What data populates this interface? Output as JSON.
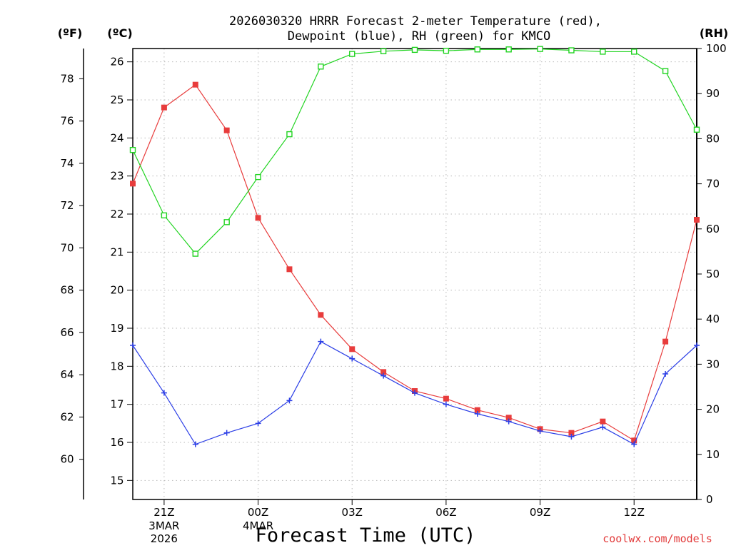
{
  "chart_data": {
    "type": "line",
    "title_line1": "2026030320 HRRR Forecast 2-meter Temperature (red),",
    "title_line2": "Dewpoint (blue), RH (green) for KMCO",
    "xlabel": "Forecast Time (UTC)",
    "credit": "coolwx.com/models",
    "units": {
      "fahrenheit": "(ºF)",
      "celsius": "(ºC)",
      "rh": "(RH)"
    },
    "x": [
      20,
      21,
      22,
      23,
      0,
      1,
      2,
      3,
      4,
      5,
      6,
      7,
      8,
      9,
      10,
      11,
      12,
      13,
      14
    ],
    "x_ticks": [
      {
        "index": 1,
        "label": "21Z",
        "date1": "3MAR",
        "date2": "2026"
      },
      {
        "index": 4,
        "label": "00Z",
        "date1": "4MAR",
        "date2": ""
      },
      {
        "index": 7,
        "label": "03Z",
        "date1": "",
        "date2": ""
      },
      {
        "index": 10,
        "label": "06Z",
        "date1": "",
        "date2": ""
      },
      {
        "index": 13,
        "label": "09Z",
        "date1": "",
        "date2": ""
      },
      {
        "index": 16,
        "label": "12Z",
        "date1": "",
        "date2": ""
      }
    ],
    "celsius_range": [
      14.5,
      26.35
    ],
    "celsius_ticks": [
      "15",
      "16",
      "17",
      "18",
      "19",
      "20",
      "21",
      "22",
      "23",
      "24",
      "25",
      "26"
    ],
    "fahrenheit_ticks": [
      "60",
      "62",
      "64",
      "66",
      "68",
      "70",
      "72",
      "74",
      "76",
      "78"
    ],
    "rh_range": [
      0,
      100
    ],
    "rh_ticks": [
      "0",
      "10",
      "20",
      "30",
      "40",
      "50",
      "60",
      "70",
      "80",
      "90",
      "100"
    ],
    "series": [
      {
        "name": "2-meter Temperature",
        "axis": "celsius",
        "color": "#e83c3c",
        "marker": "filled-square",
        "values": [
          22.8,
          24.8,
          25.4,
          24.2,
          21.9,
          20.55,
          19.35,
          18.45,
          17.85,
          17.35,
          17.15,
          16.85,
          16.65,
          16.35,
          16.25,
          16.55,
          16.05,
          18.65,
          21.85
        ]
      },
      {
        "name": "Dewpoint",
        "axis": "celsius",
        "color": "#2b3ee6",
        "marker": "plus",
        "values": [
          18.55,
          17.3,
          15.95,
          16.25,
          16.5,
          17.1,
          18.65,
          18.2,
          17.75,
          17.3,
          17.0,
          16.75,
          16.55,
          16.3,
          16.15,
          16.4,
          15.95,
          17.8,
          18.55
        ]
      },
      {
        "name": "RH",
        "axis": "rh",
        "color": "#22d422",
        "marker": "open-square",
        "values": [
          77.5,
          63,
          54.5,
          61.5,
          71.5,
          81,
          96,
          98.8,
          99.4,
          99.7,
          99.5,
          99.8,
          99.8,
          99.9,
          99.6,
          99.3,
          99.3,
          95,
          82
        ]
      }
    ]
  }
}
